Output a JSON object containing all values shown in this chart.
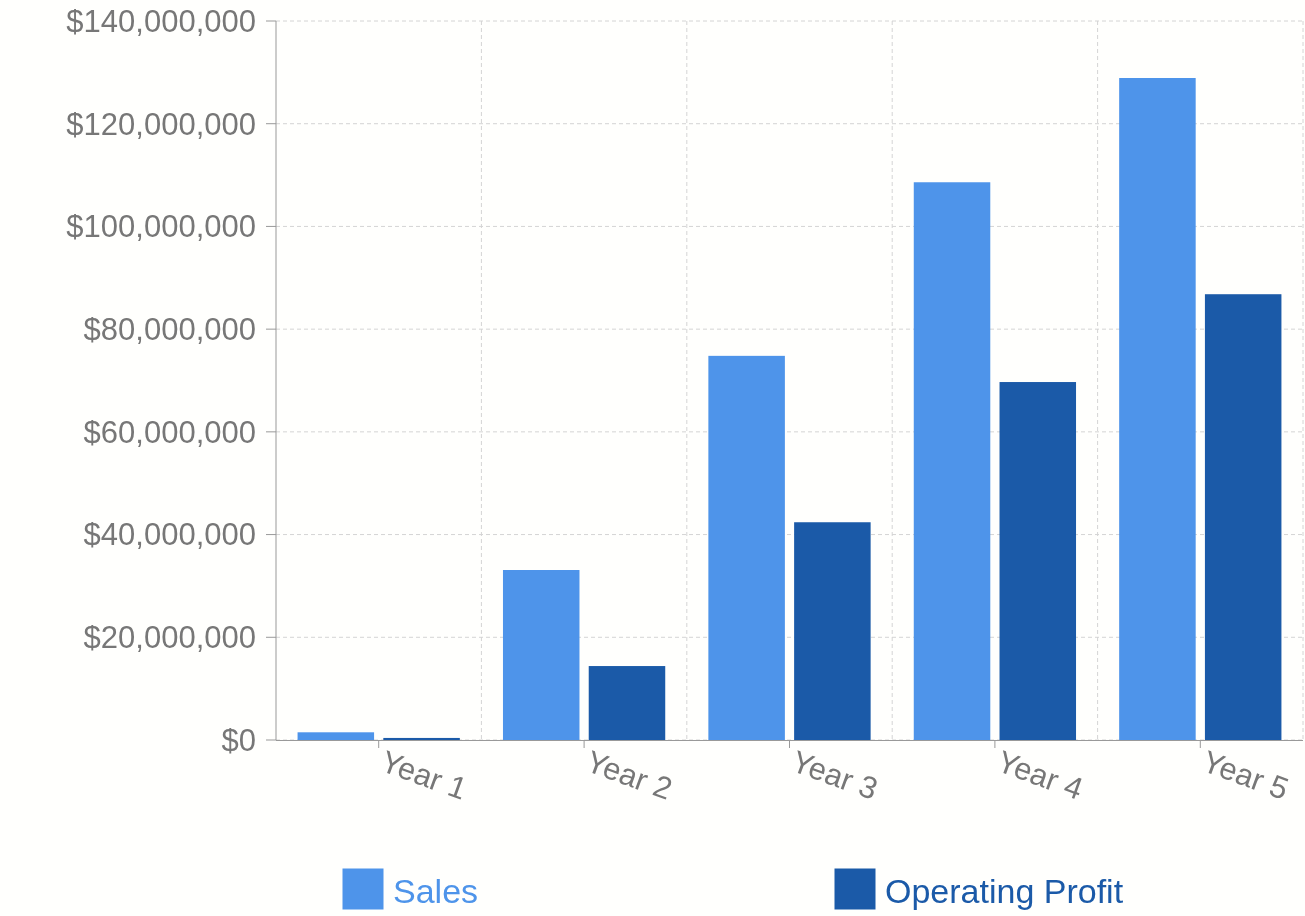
{
  "chart_data": {
    "type": "bar",
    "categories": [
      "Year 1",
      "Year 2",
      "Year 3",
      "Year 4",
      "Year 5"
    ],
    "series": [
      {
        "name": "Sales",
        "color": "#4e94ea",
        "values": [
          1500000,
          33100000,
          74800000,
          108600000,
          128900000
        ]
      },
      {
        "name": "Operating Profit",
        "color": "#1b5aa8",
        "values": [
          400000,
          14400000,
          42400000,
          69700000,
          86800000
        ]
      }
    ],
    "ylim": [
      0,
      140000000
    ],
    "yticks": [
      {
        "value": 0,
        "label": "$0"
      },
      {
        "value": 20000000,
        "label": "$20,000,000"
      },
      {
        "value": 40000000,
        "label": "$40,000,000"
      },
      {
        "value": 60000000,
        "label": "$60,000,000"
      },
      {
        "value": 80000000,
        "label": "$80,000,000"
      },
      {
        "value": 100000000,
        "label": "$100,000,000"
      },
      {
        "value": 120000000,
        "label": "$120,000,000"
      },
      {
        "value": 140000000,
        "label": "$140,000,000"
      }
    ],
    "grid": true,
    "legend": "bottom"
  }
}
